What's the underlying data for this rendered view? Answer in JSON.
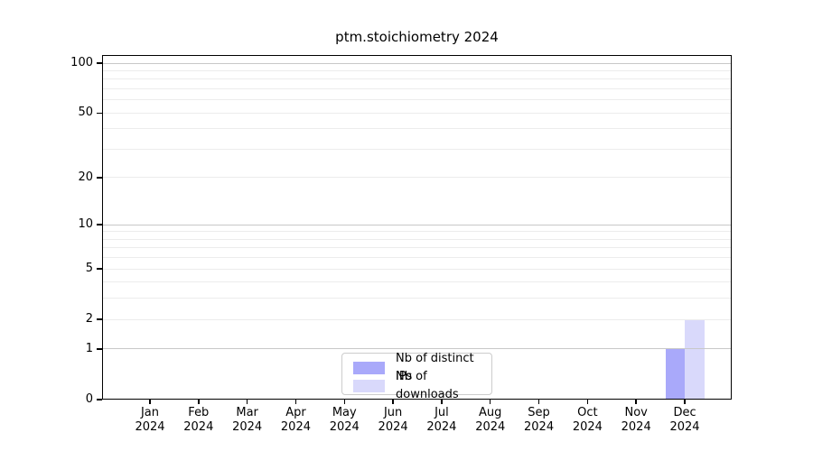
{
  "chart_data": {
    "type": "bar",
    "title": "ptm.stoichiometry 2024",
    "categories": [
      "Jan",
      "Feb",
      "Mar",
      "Apr",
      "May",
      "Jun",
      "Jul",
      "Aug",
      "Sep",
      "Oct",
      "Nov",
      "Dec"
    ],
    "x_year_label": "2024",
    "series": [
      {
        "name": "Nb of distinct IPs",
        "color": "#a9a9fa",
        "values": [
          0,
          0,
          0,
          0,
          0,
          0,
          0,
          0,
          0,
          0,
          0,
          1
        ]
      },
      {
        "name": "Nb of downloads",
        "color": "#d9d9fb",
        "values": [
          0,
          0,
          0,
          0,
          0,
          0,
          0,
          0,
          0,
          0,
          0,
          2
        ]
      }
    ],
    "y_scale": "log1p",
    "ylim": [
      0,
      112
    ],
    "y_ticks": [
      0,
      1,
      2,
      5,
      10,
      20,
      50,
      100
    ],
    "grid_major": [
      1,
      10,
      100
    ],
    "grid_minor": [
      2,
      3,
      4,
      5,
      6,
      7,
      8,
      9,
      20,
      30,
      40,
      50,
      60,
      70,
      80,
      90
    ],
    "legend_position": "lower center",
    "colors": {
      "grid_major": "#c8c8c8",
      "grid_minor": "#ececec",
      "spine": "#000000",
      "text": "#000000",
      "background": "#ffffff"
    }
  }
}
